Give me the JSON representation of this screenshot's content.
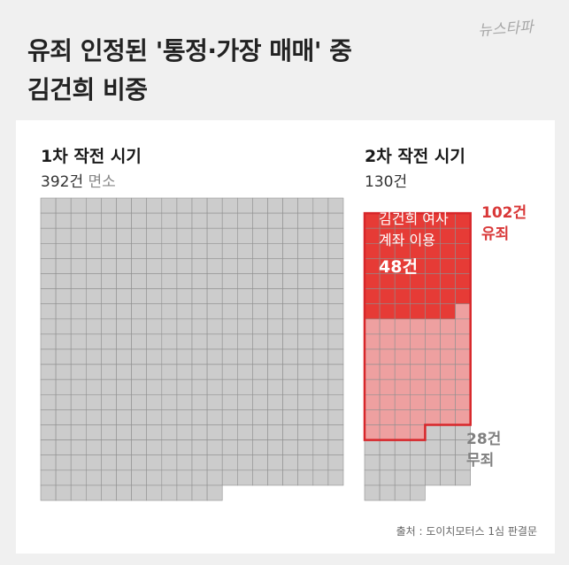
{
  "title_lines": [
    "유죄 인정된 '통정·가장 매매' 중",
    "김건희 비중"
  ],
  "logo_text": "뉴스타파",
  "panel1": {
    "title": "1차 작전 시기",
    "count": "392건",
    "note": "면소"
  },
  "panel2": {
    "title": "2차 작전 시기",
    "count": "130건",
    "guilty_labels": [
      "102건",
      "유죄"
    ],
    "kim_labels": [
      "김건희 여사",
      "계좌 이용"
    ],
    "kim_count": "48건",
    "not_guilty_labels": [
      "28건",
      "무죄"
    ]
  },
  "source": "출처 : 도이치모터스 1심 판결문",
  "colors": {
    "neutral": "#cccccc",
    "kim_account": "#e63b36",
    "other_guilty": "#eea0a0",
    "outline": "#d7262a",
    "grid_line": "#8f8f8f"
  },
  "chart_data": {
    "type": "waffle",
    "unit": "1 square = 1 case",
    "panels": [
      {
        "name": "1차 작전 시기",
        "total": 392,
        "segments": [
          {
            "label": "면소",
            "value": 392
          }
        ]
      },
      {
        "name": "2차 작전 시기",
        "total": 130,
        "segments": [
          {
            "label": "김건희 여사 계좌 이용",
            "value": 48
          },
          {
            "label": "유죄 (기타)",
            "value": 54
          },
          {
            "label": "무죄",
            "value": 28
          }
        ],
        "guilty_total": 102
      }
    ]
  }
}
